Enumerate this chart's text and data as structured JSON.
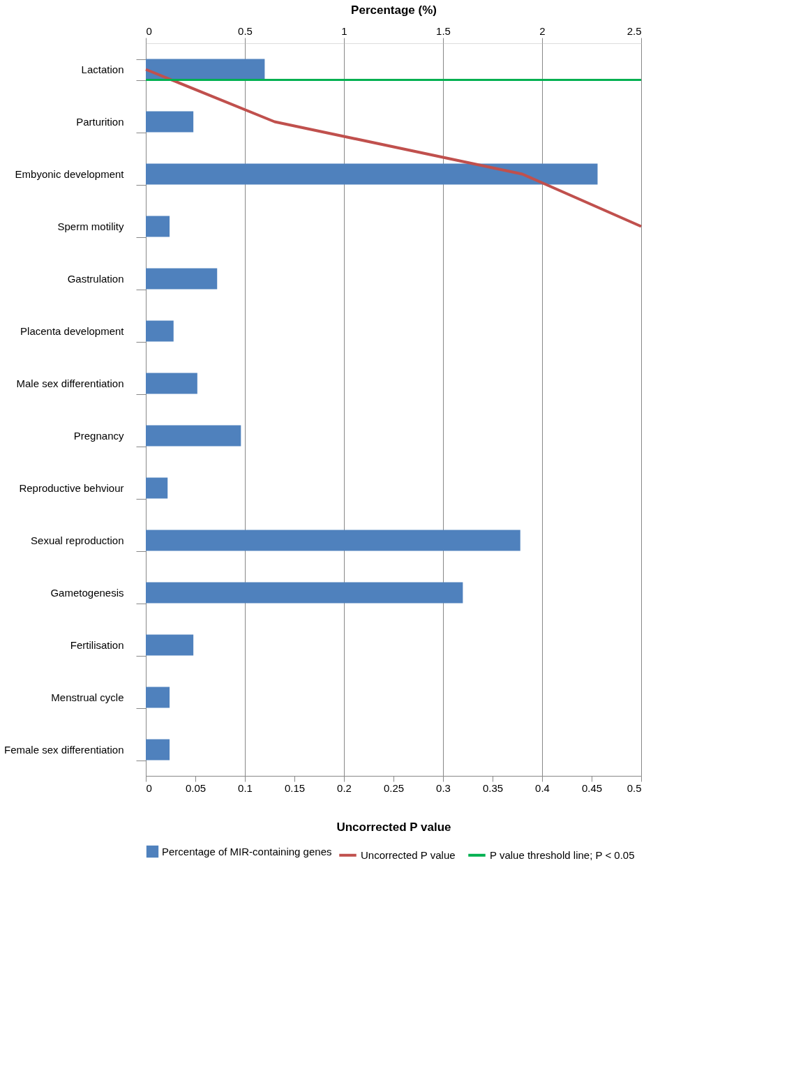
{
  "chart_data": {
    "type": "bar",
    "orientation": "horizontal",
    "xlabel": "Percentage (%)",
    "x2label": "Uncorrected P value",
    "categories": [
      "Lactation",
      "Parturition",
      "Embyonic development",
      "Sperm motility",
      "Gastrulation",
      "Placenta development",
      "Male sex differentiation",
      "Pregnancy",
      "Reproductive behviour",
      "Sexual reproduction",
      "Gametogenesis",
      "Fertilisation",
      "Menstrual cycle",
      "Female sex differentiation"
    ],
    "series": [
      {
        "name": "Percentage of MIR-containing genes",
        "type": "bar",
        "color": "#4f81bd",
        "values": [
          0.6,
          0.24,
          2.28,
          0.12,
          0.36,
          0.14,
          0.26,
          0.48,
          0.11,
          1.89,
          1.6,
          0.24,
          0.12,
          0.12
        ]
      },
      {
        "name": "Uncorrected P value",
        "type": "line",
        "axis": "x2",
        "color": "#c0504d",
        "values": [
          0.0,
          0.13,
          0.38,
          0.5,
          null,
          null,
          null,
          null,
          null,
          null,
          null,
          null,
          null,
          null
        ]
      }
    ],
    "ref_lines": [
      {
        "axis": "y",
        "value": "Lactation",
        "label": "P value threshold line; P < 0.05",
        "color": "#00b050"
      }
    ],
    "xlim": [
      0,
      2.5
    ],
    "xticks": [
      0,
      0.5,
      1,
      1.5,
      2,
      2.5
    ],
    "x2lim": [
      0,
      0.5
    ],
    "x2ticks": [
      0,
      0.05,
      0.1,
      0.15,
      0.2,
      0.25,
      0.3,
      0.35,
      0.4,
      0.45,
      0.5
    ],
    "grid": "x",
    "legend": "bottom"
  }
}
